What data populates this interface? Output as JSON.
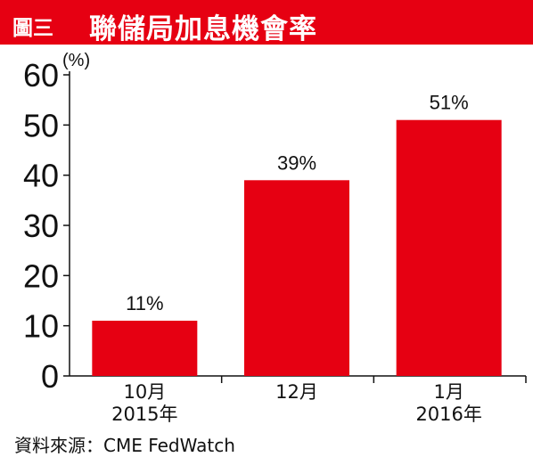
{
  "header": {
    "figure_label": "圖三",
    "title": "聯儲局加息機會率"
  },
  "source": "資料來源：CME FedWatch",
  "colors": {
    "accent": "#e60012",
    "bar": "#e60012",
    "text": "#111111"
  },
  "chart_data": {
    "type": "bar",
    "title": "聯儲局加息機會率",
    "unit_label": "(%)",
    "categories": [
      {
        "line1": "10月",
        "line2": "2015年"
      },
      {
        "line1": "12月",
        "line2": ""
      },
      {
        "line1": "1月",
        "line2": "2016年"
      }
    ],
    "values": [
      11,
      39,
      51
    ],
    "data_labels": [
      "11%",
      "39%",
      "51%"
    ],
    "ylim": [
      0,
      60
    ],
    "yticks": [
      0,
      10,
      20,
      30,
      40,
      50,
      60
    ],
    "grid": false,
    "legend": "none"
  }
}
